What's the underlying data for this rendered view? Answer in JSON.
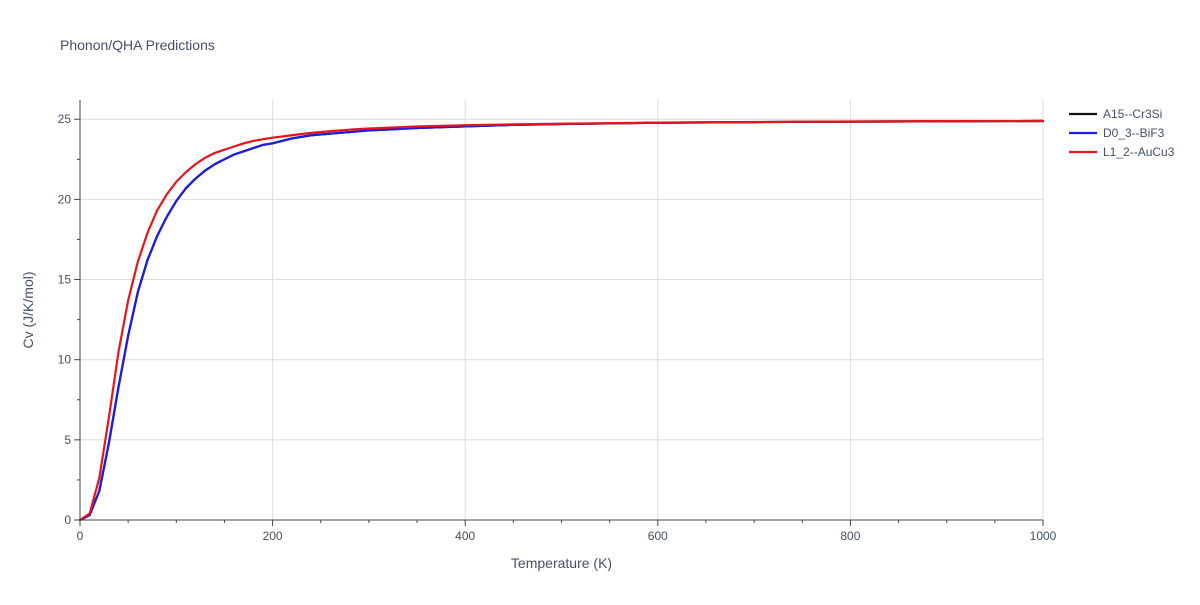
{
  "chart_data": {
    "type": "line",
    "title": "Phonon/QHA Predictions",
    "xlabel": "Temperature (K)",
    "ylabel": "Cv (J/K/mol)",
    "xlim": [
      0,
      1000
    ],
    "ylim": [
      0,
      26.2
    ],
    "x_ticks": [
      0,
      200,
      400,
      600,
      800,
      1000
    ],
    "y_ticks": [
      0,
      5,
      10,
      15,
      20,
      25
    ],
    "grid": true,
    "legend_position": "top-right",
    "series": [
      {
        "name": "A15--Cr3Si",
        "color": "#111111",
        "x": [
          0,
          10,
          20,
          30,
          40,
          50,
          60,
          70,
          80,
          90,
          100,
          110,
          120,
          130,
          140,
          150,
          160,
          170,
          180,
          190,
          200,
          220,
          240,
          260,
          280,
          300,
          350,
          400,
          450,
          500,
          600,
          700,
          800,
          900,
          1000
        ],
        "y": [
          0,
          0.3,
          1.8,
          4.8,
          8.3,
          11.5,
          14.2,
          16.2,
          17.7,
          18.9,
          19.9,
          20.7,
          21.3,
          21.8,
          22.2,
          22.5,
          22.8,
          23.0,
          23.2,
          23.4,
          23.5,
          23.8,
          24.0,
          24.1,
          24.2,
          24.3,
          24.45,
          24.55,
          24.65,
          24.7,
          24.78,
          24.82,
          24.85,
          24.87,
          24.89
        ]
      },
      {
        "name": "D0_3--BiF3",
        "color": "#1c1ce8",
        "x": [
          0,
          10,
          20,
          30,
          40,
          50,
          60,
          70,
          80,
          90,
          100,
          110,
          120,
          130,
          140,
          150,
          160,
          170,
          180,
          190,
          200,
          220,
          240,
          260,
          280,
          300,
          350,
          400,
          450,
          500,
          600,
          700,
          800,
          900,
          1000
        ],
        "y": [
          0,
          0.3,
          1.8,
          4.8,
          8.3,
          11.5,
          14.2,
          16.2,
          17.7,
          18.9,
          19.9,
          20.7,
          21.3,
          21.8,
          22.2,
          22.5,
          22.8,
          23.0,
          23.2,
          23.4,
          23.5,
          23.8,
          24.0,
          24.1,
          24.2,
          24.3,
          24.45,
          24.55,
          24.65,
          24.7,
          24.78,
          24.82,
          24.85,
          24.87,
          24.89
        ]
      },
      {
        "name": "L1_2--AuCu3",
        "color": "#e8141c",
        "x": [
          0,
          10,
          20,
          30,
          40,
          50,
          60,
          70,
          80,
          90,
          100,
          110,
          120,
          130,
          140,
          150,
          160,
          170,
          180,
          190,
          200,
          220,
          240,
          260,
          280,
          300,
          350,
          400,
          450,
          500,
          600,
          700,
          800,
          900,
          1000
        ],
        "y": [
          0,
          0.4,
          2.6,
          6.4,
          10.5,
          13.7,
          16.1,
          17.9,
          19.3,
          20.3,
          21.1,
          21.7,
          22.2,
          22.6,
          22.9,
          23.1,
          23.3,
          23.5,
          23.65,
          23.75,
          23.85,
          24.0,
          24.15,
          24.25,
          24.35,
          24.42,
          24.55,
          24.63,
          24.68,
          24.72,
          24.79,
          24.83,
          24.86,
          24.88,
          24.89
        ]
      }
    ]
  }
}
